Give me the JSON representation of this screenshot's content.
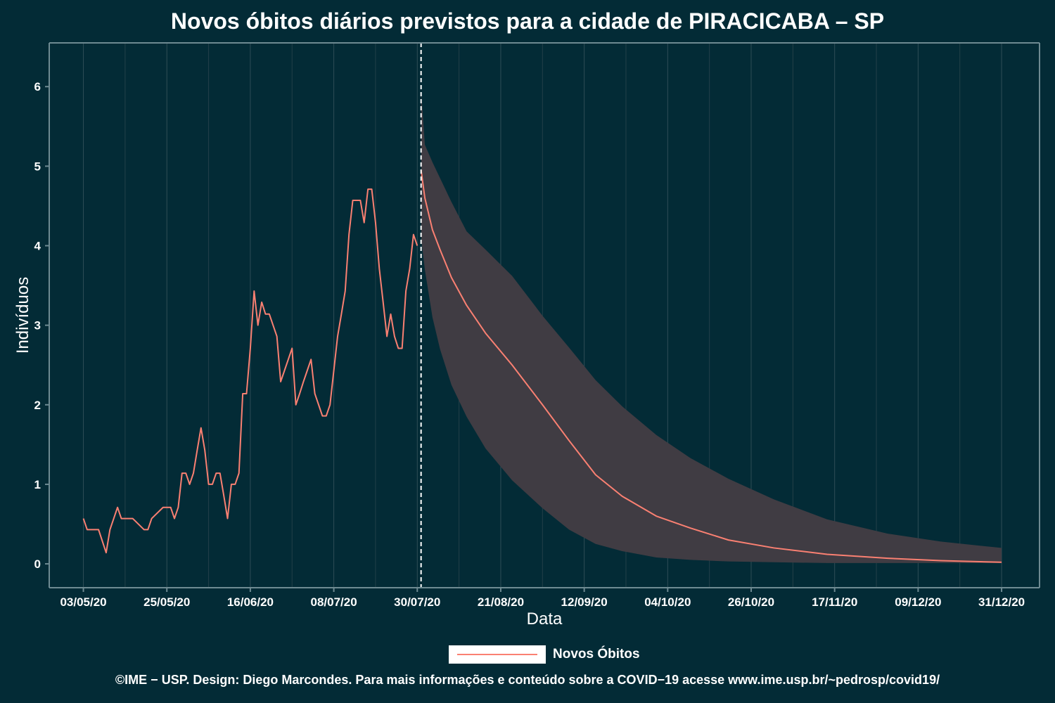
{
  "chart_data": {
    "type": "line",
    "title": "Novos óbitos diários previstos para a cidade de PIRACICABA – SP",
    "xlabel": "Data",
    "ylabel": "Indivíduos",
    "x_start": "2020-05-03",
    "x_range": [
      "2020-04-24",
      "2021-01-10"
    ],
    "ylim": [
      -0.3,
      6.55
    ],
    "y_ticks": [
      0,
      1,
      2,
      3,
      4,
      5,
      6
    ],
    "y_tick_labels": [
      "0",
      "1",
      "2",
      "3",
      "4",
      "5",
      "6"
    ],
    "x_ticks": [
      "2020-05-03",
      "2020-05-25",
      "2020-06-16",
      "2020-07-08",
      "2020-07-30",
      "2020-08-21",
      "2020-09-12",
      "2020-10-04",
      "2020-10-26",
      "2020-11-17",
      "2020-12-09",
      "2020-12-31"
    ],
    "x_tick_labels": [
      "03/05/20",
      "25/05/20",
      "16/06/20",
      "08/07/20",
      "30/07/20",
      "21/08/20",
      "12/09/20",
      "04/10/20",
      "26/10/20",
      "17/11/20",
      "09/12/20",
      "31/12/20"
    ],
    "grid": true,
    "legend_position": "bottom",
    "vline_date": "2020-07-31",
    "series": [
      {
        "name": "Novos Óbitos",
        "color": "#fa8072",
        "observed": {
          "x": [
            "2020-05-03",
            "2020-05-04",
            "2020-05-07",
            "2020-05-09",
            "2020-05-10",
            "2020-05-12",
            "2020-05-13",
            "2020-05-16",
            "2020-05-19",
            "2020-05-20",
            "2020-05-21",
            "2020-05-24",
            "2020-05-25",
            "2020-05-26",
            "2020-05-27",
            "2020-05-28",
            "2020-05-29",
            "2020-05-30",
            "2020-05-31",
            "2020-06-01",
            "2020-06-02",
            "2020-06-03",
            "2020-06-04",
            "2020-06-05",
            "2020-06-06",
            "2020-06-07",
            "2020-06-08",
            "2020-06-09",
            "2020-06-10",
            "2020-06-11",
            "2020-06-12",
            "2020-06-13",
            "2020-06-14",
            "2020-06-15",
            "2020-06-16",
            "2020-06-17",
            "2020-06-18",
            "2020-06-19",
            "2020-06-20",
            "2020-06-21",
            "2020-06-22",
            "2020-06-23",
            "2020-06-24",
            "2020-06-25",
            "2020-06-26",
            "2020-06-27",
            "2020-06-28",
            "2020-06-29",
            "2020-06-30",
            "2020-07-01",
            "2020-07-02",
            "2020-07-03",
            "2020-07-04",
            "2020-07-05",
            "2020-07-06",
            "2020-07-07",
            "2020-07-08",
            "2020-07-09",
            "2020-07-10",
            "2020-07-11",
            "2020-07-12",
            "2020-07-13",
            "2020-07-14",
            "2020-07-15",
            "2020-07-16",
            "2020-07-17",
            "2020-07-18",
            "2020-07-19",
            "2020-07-20",
            "2020-07-21",
            "2020-07-22",
            "2020-07-23",
            "2020-07-24",
            "2020-07-25",
            "2020-07-26",
            "2020-07-27",
            "2020-07-28",
            "2020-07-29",
            "2020-07-30"
          ],
          "y": [
            0.57,
            0.43,
            0.43,
            0.14,
            0.43,
            0.71,
            0.57,
            0.57,
            0.43,
            0.43,
            0.57,
            0.71,
            0.71,
            0.71,
            0.57,
            0.71,
            1.14,
            1.14,
            1.0,
            1.14,
            1.43,
            1.71,
            1.43,
            1.0,
            1.0,
            1.14,
            1.14,
            0.86,
            0.57,
            1.0,
            1.0,
            1.14,
            2.14,
            2.14,
            2.71,
            3.43,
            3.0,
            3.29,
            3.14,
            3.14,
            3.0,
            2.86,
            2.29,
            2.43,
            2.57,
            2.71,
            2.0,
            2.14,
            2.29,
            2.43,
            2.57,
            2.14,
            2.0,
            1.86,
            1.86,
            2.0,
            2.43,
            2.86,
            3.14,
            3.43,
            4.14,
            4.57,
            4.57,
            4.57,
            4.29,
            4.71,
            4.71,
            4.29,
            3.71,
            3.29,
            2.86,
            3.14,
            2.86,
            2.71,
            2.71,
            3.43,
            3.71,
            4.14,
            4.0
          ]
        },
        "forecast": {
          "x": [
            "2020-07-31",
            "2020-08-01",
            "2020-08-03",
            "2020-08-05",
            "2020-08-08",
            "2020-08-12",
            "2020-08-17",
            "2020-08-24",
            "2020-09-01",
            "2020-09-08",
            "2020-09-15",
            "2020-09-22",
            "2020-10-01",
            "2020-10-10",
            "2020-10-20",
            "2020-11-01",
            "2020-11-15",
            "2020-12-01",
            "2020-12-15",
            "2020-12-31"
          ],
          "y": [
            4.95,
            4.6,
            4.2,
            3.95,
            3.6,
            3.25,
            2.9,
            2.5,
            2.0,
            1.55,
            1.12,
            0.85,
            0.6,
            0.45,
            0.3,
            0.2,
            0.12,
            0.07,
            0.04,
            0.02
          ],
          "lower": [
            4.1,
            3.7,
            3.1,
            2.7,
            2.25,
            1.85,
            1.45,
            1.05,
            0.7,
            0.43,
            0.25,
            0.16,
            0.08,
            0.05,
            0.03,
            0.02,
            0.01,
            0.01,
            0.01,
            0.01
          ],
          "upper": [
            5.95,
            5.27,
            5.05,
            4.85,
            4.55,
            4.18,
            3.95,
            3.62,
            3.12,
            2.72,
            2.31,
            1.98,
            1.62,
            1.33,
            1.07,
            0.81,
            0.56,
            0.38,
            0.28,
            0.2
          ]
        },
        "band_color": "#403c43"
      }
    ]
  },
  "legend": {
    "label": "Novos Óbitos"
  },
  "caption": "©IME − USP. Design: Diego Marcondes. Para mais informações e conteúdo sobre a COVID−19 acesse www.ime.usp.br/~pedrosp/covid19/"
}
